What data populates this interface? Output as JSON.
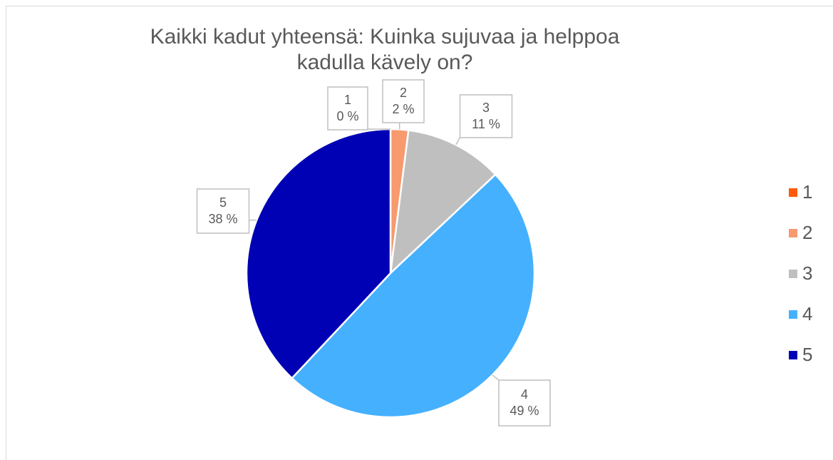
{
  "chart_data": {
    "type": "pie",
    "title": "Kaikki kadut yhteensä: Kuinka sujuvaa ja helppoa kadulla kävely on?",
    "categories": [
      "1",
      "2",
      "3",
      "4",
      "5"
    ],
    "values": [
      0,
      2,
      11,
      49,
      38
    ],
    "value_labels": [
      "0 %",
      "2 %",
      "11 %",
      "49 %",
      "38 %"
    ],
    "colors": [
      "#ff5a0a",
      "#f79a6e",
      "#bfbfbf",
      "#45b0fe",
      "#0000b4"
    ],
    "legend": "right"
  }
}
